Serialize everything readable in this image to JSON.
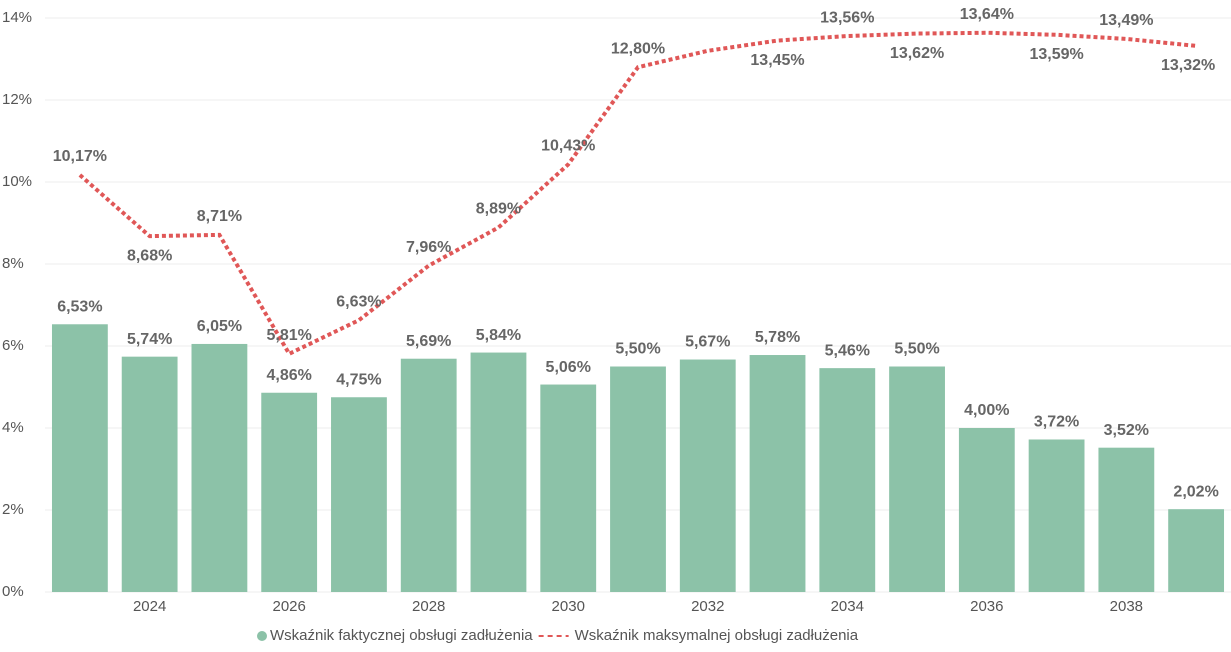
{
  "chart_data": {
    "type": "bar",
    "categories": [
      null,
      "2024",
      null,
      "2026",
      null,
      "2028",
      null,
      "2030",
      null,
      "2032",
      null,
      "2034",
      null,
      "2036",
      null,
      "2038",
      null
    ],
    "series": [
      {
        "name": "Wskaźnik faktycznej obsługi zadłużenia",
        "type": "bar",
        "color": "#8cc2a8",
        "values": [
          6.53,
          5.74,
          6.05,
          4.86,
          4.75,
          5.69,
          5.84,
          5.06,
          5.5,
          5.67,
          5.78,
          5.46,
          5.5,
          4.0,
          3.72,
          3.52,
          2.02
        ],
        "value_labels": [
          "6,53%",
          "5,74%",
          "6,05%",
          "4,86%",
          "4,75%",
          "5,69%",
          "5,84%",
          "5,06%",
          "5,50%",
          "5,67%",
          "5,78%",
          "5,46%",
          "5,50%",
          "4,00%",
          "3,72%",
          "3,52%",
          "2,02%"
        ]
      },
      {
        "name": "Wskaźnik maksymalnej obsługi zadłużenia",
        "type": "line",
        "color": "#e05757",
        "values": [
          10.17,
          8.68,
          8.71,
          5.81,
          6.63,
          7.96,
          8.89,
          10.43,
          12.8,
          13.2,
          13.45,
          13.56,
          13.62,
          13.64,
          13.59,
          13.49,
          13.32
        ],
        "value_labels": [
          "10,17%",
          "8,68%",
          "8,71%",
          "5,81%",
          "6,63%",
          "7,96%",
          "8,89%",
          "10,43%",
          "12,80%",
          null,
          "13,45%",
          "13,56%",
          "13,62%",
          "13,64%",
          "13,59%",
          "13,49%",
          "13,32%"
        ]
      }
    ],
    "ylim": [
      0,
      14
    ],
    "yticks": [
      {
        "value": 0,
        "label": "0%"
      },
      {
        "value": 2,
        "label": "2%"
      },
      {
        "value": 4,
        "label": "4%"
      },
      {
        "value": 6,
        "label": "6%"
      },
      {
        "value": 8,
        "label": "8%"
      },
      {
        "value": 10,
        "label": "10%"
      },
      {
        "value": 12,
        "label": "12%"
      },
      {
        "value": 14,
        "label": "14%"
      }
    ],
    "grid": true,
    "legend": "bottom"
  }
}
